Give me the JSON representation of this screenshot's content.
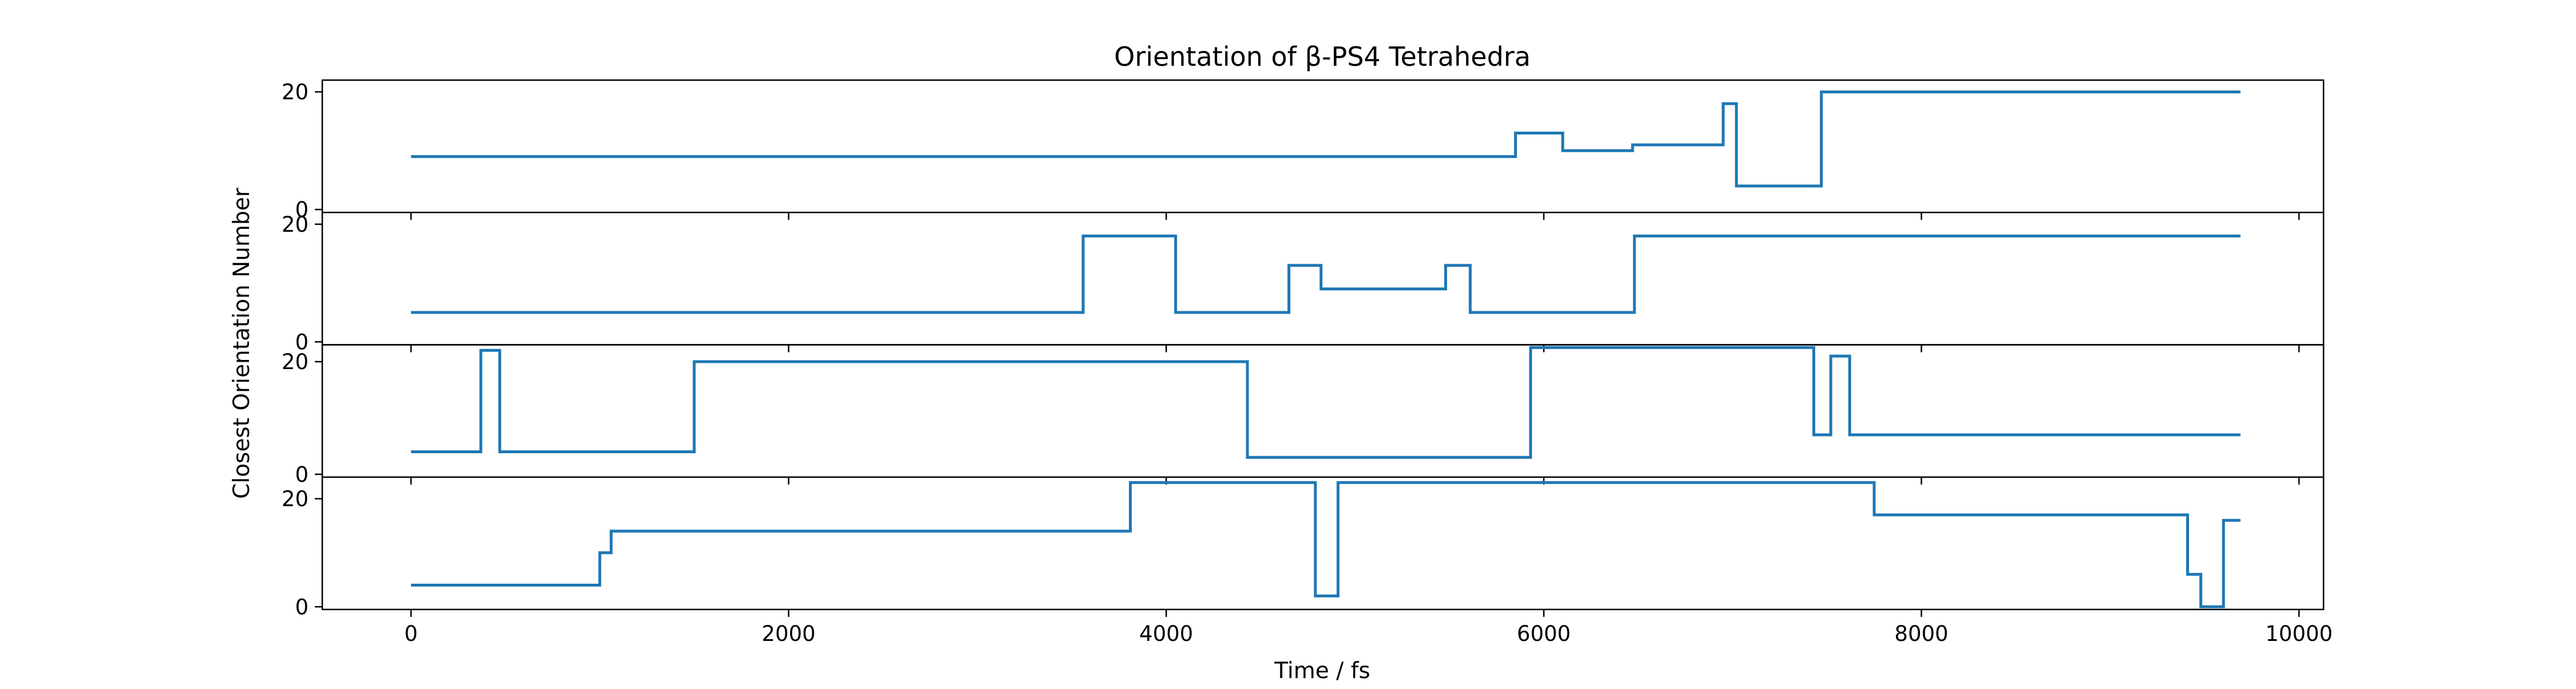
{
  "chart_data": {
    "type": "line",
    "title": "Orientation of β-PS4 Tetrahedra",
    "xlabel": "Time / fs",
    "ylabel": "Closest Orientation Number",
    "xlim": [
      -470,
      10130
    ],
    "x_ticks": [
      0,
      2000,
      4000,
      6000,
      8000,
      10000
    ],
    "x_tick_labels": [
      "0",
      "2000",
      "4000",
      "6000",
      "8000",
      "10000"
    ],
    "line_color": "#1f77b4",
    "grid": false,
    "legend": "none",
    "panels": [
      {
        "name": "",
        "ylim": [
          -0.5,
          22
        ],
        "y_ticks": [
          0,
          20
        ],
        "y_tick_labels": [
          "0",
          "20"
        ],
        "x_tick_labels_visible": false,
        "step_points": [
          [
            0,
            9
          ],
          [
            5850,
            9
          ],
          [
            5850,
            13
          ],
          [
            6100,
            13
          ],
          [
            6100,
            10
          ],
          [
            6470,
            10
          ],
          [
            6470,
            11
          ],
          [
            6950,
            11
          ],
          [
            6950,
            18
          ],
          [
            7020,
            18
          ],
          [
            7020,
            4
          ],
          [
            7470,
            4
          ],
          [
            7470,
            20
          ],
          [
            9690,
            20
          ]
        ]
      },
      {
        "name": "",
        "ylim": [
          -0.5,
          22
        ],
        "y_ticks": [
          0,
          20
        ],
        "y_tick_labels": [
          "0",
          "20"
        ],
        "x_tick_labels_visible": false,
        "step_points": [
          [
            0,
            5
          ],
          [
            3560,
            5
          ],
          [
            3560,
            18
          ],
          [
            4050,
            18
          ],
          [
            4050,
            5
          ],
          [
            4650,
            5
          ],
          [
            4650,
            13
          ],
          [
            4820,
            13
          ],
          [
            4820,
            9
          ],
          [
            5480,
            9
          ],
          [
            5480,
            13
          ],
          [
            5610,
            13
          ],
          [
            5610,
            5
          ],
          [
            6480,
            5
          ],
          [
            6480,
            18
          ],
          [
            9690,
            18
          ]
        ]
      },
      {
        "name": "",
        "ylim": [
          -0.5,
          23
        ],
        "y_ticks": [
          0,
          20
        ],
        "y_tick_labels": [
          "0",
          "20"
        ],
        "x_tick_labels_visible": false,
        "step_points": [
          [
            0,
            4
          ],
          [
            370,
            4
          ],
          [
            370,
            22
          ],
          [
            470,
            22
          ],
          [
            470,
            4
          ],
          [
            1500,
            4
          ],
          [
            1500,
            20
          ],
          [
            4430,
            20
          ],
          [
            4430,
            3
          ],
          [
            5930,
            3
          ],
          [
            5930,
            22.5
          ],
          [
            7430,
            22.5
          ],
          [
            7430,
            7
          ],
          [
            7520,
            7
          ],
          [
            7520,
            21
          ],
          [
            7620,
            21
          ],
          [
            7620,
            7
          ],
          [
            9690,
            7
          ]
        ]
      },
      {
        "name": "",
        "ylim": [
          -0.5,
          24
        ],
        "y_ticks": [
          0,
          20
        ],
        "y_tick_labels": [
          "0",
          "20"
        ],
        "x_tick_labels_visible": true,
        "step_points": [
          [
            0,
            4
          ],
          [
            1000,
            4
          ],
          [
            1000,
            10
          ],
          [
            1060,
            10
          ],
          [
            1060,
            14
          ],
          [
            3810,
            14
          ],
          [
            3810,
            23
          ],
          [
            4790,
            23
          ],
          [
            4790,
            2
          ],
          [
            4910,
            2
          ],
          [
            4910,
            23
          ],
          [
            7750,
            23
          ],
          [
            7750,
            17
          ],
          [
            9410,
            17
          ],
          [
            9410,
            6
          ],
          [
            9480,
            6
          ],
          [
            9480,
            0
          ],
          [
            9600,
            0
          ],
          [
            9600,
            16
          ],
          [
            9690,
            16
          ]
        ]
      }
    ]
  }
}
